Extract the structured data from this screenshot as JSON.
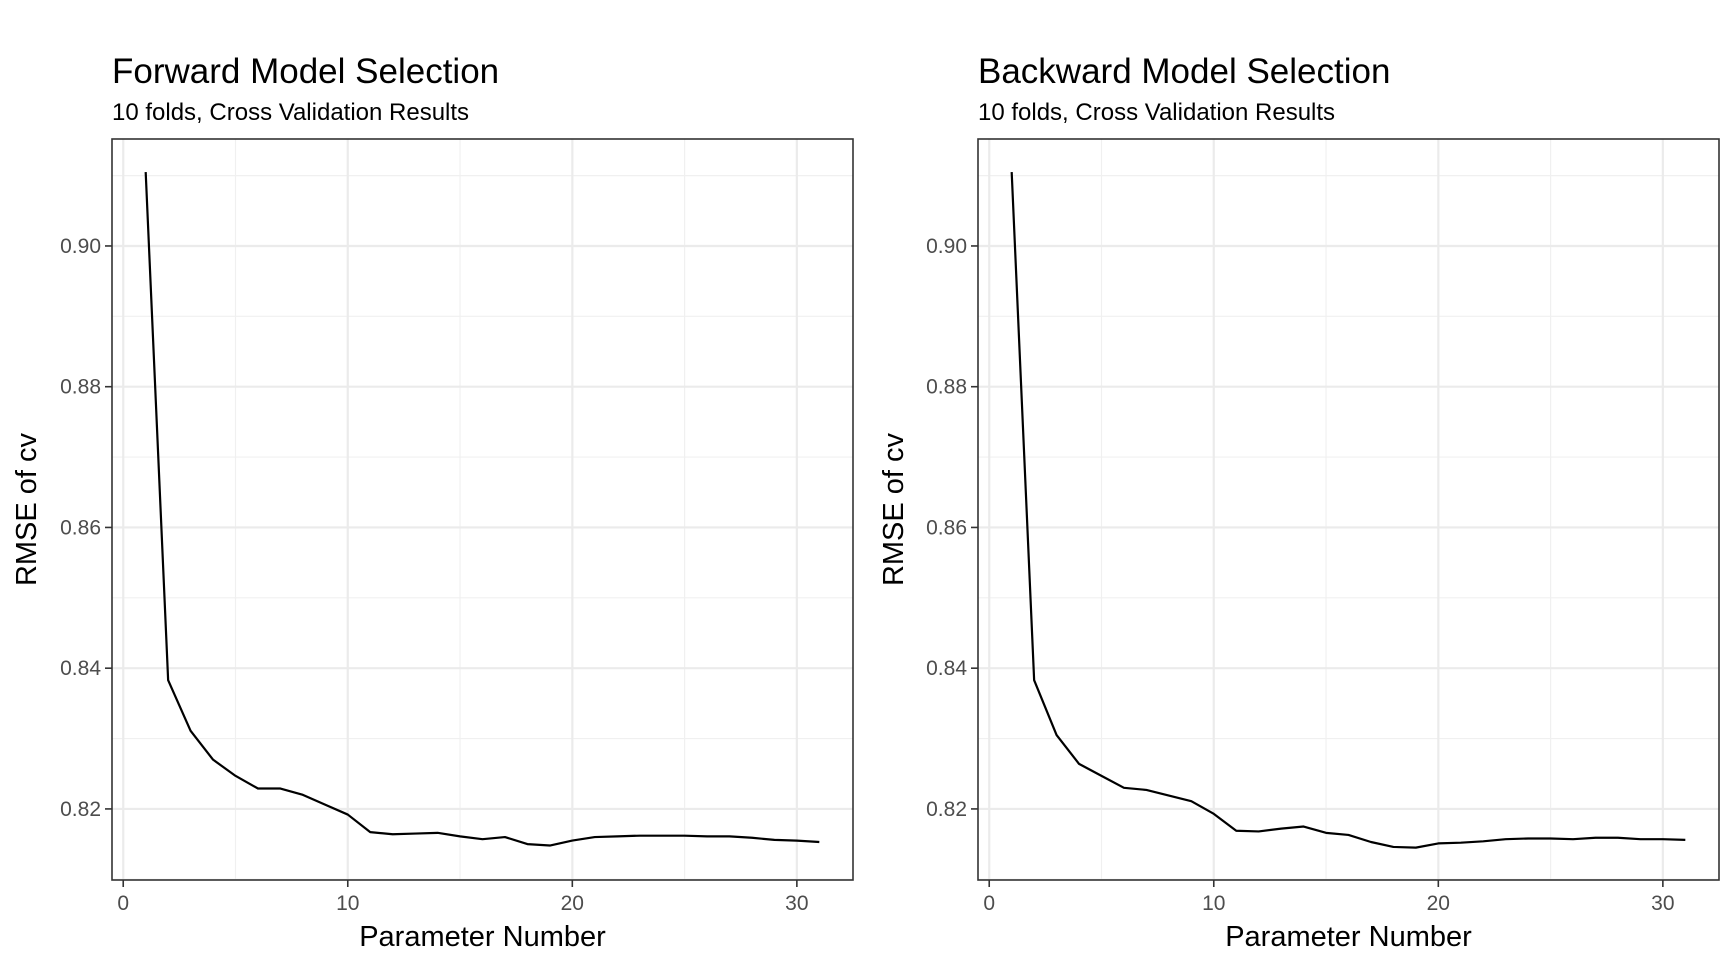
{
  "chart_data": [
    {
      "type": "line",
      "title": "Forward Model Selection",
      "subtitle": "10 folds, Cross Validation Results",
      "xlabel": "Parameter Number",
      "ylabel": "RMSE of cv",
      "xlim": [
        -0.5,
        32.5
      ],
      "ylim": [
        0.8099,
        0.9152
      ],
      "x_ticks": [
        0,
        10,
        20,
        30
      ],
      "x_tick_labels": [
        "0",
        "10",
        "20",
        "30"
      ],
      "y_ticks": [
        0.82,
        0.84,
        0.86,
        0.88,
        0.9
      ],
      "y_tick_labels": [
        "0.82",
        "0.84",
        "0.86",
        "0.88",
        "0.90"
      ],
      "grid": true,
      "series": [
        {
          "color": "#000000",
          "x": [
            1,
            2,
            3,
            4,
            5,
            6,
            7,
            8,
            9,
            10,
            11,
            12,
            13,
            14,
            15,
            16,
            17,
            18,
            19,
            20,
            21,
            22,
            23,
            24,
            25,
            26,
            27,
            28,
            29,
            30,
            31
          ],
          "y": [
            0.9105,
            0.8383,
            0.8311,
            0.827,
            0.8247,
            0.8229,
            0.8229,
            0.822,
            0.8206,
            0.8192,
            0.8167,
            0.8164,
            0.8165,
            0.8166,
            0.8161,
            0.8157,
            0.816,
            0.815,
            0.8148,
            0.8155,
            0.816,
            0.8161,
            0.8162,
            0.8162,
            0.8162,
            0.8161,
            0.8161,
            0.8159,
            0.8156,
            0.8155,
            0.8153
          ]
        }
      ]
    },
    {
      "type": "line",
      "title": "Backward Model Selection",
      "subtitle": "10 folds, Cross Validation Results",
      "xlabel": "Parameter Number",
      "ylabel": "RMSE of cv",
      "xlim": [
        -0.5,
        32.5
      ],
      "ylim": [
        0.8099,
        0.9152
      ],
      "x_ticks": [
        0,
        10,
        20,
        30
      ],
      "x_tick_labels": [
        "0",
        "10",
        "20",
        "30"
      ],
      "y_ticks": [
        0.82,
        0.84,
        0.86,
        0.88,
        0.9
      ],
      "y_tick_labels": [
        "0.82",
        "0.84",
        "0.86",
        "0.88",
        "0.90"
      ],
      "grid": true,
      "series": [
        {
          "color": "#000000",
          "x": [
            1,
            2,
            3,
            4,
            5,
            6,
            7,
            8,
            9,
            10,
            11,
            12,
            13,
            14,
            15,
            16,
            17,
            18,
            19,
            20,
            21,
            22,
            23,
            24,
            25,
            26,
            27,
            28,
            29,
            30,
            31
          ],
          "y": [
            0.9105,
            0.8383,
            0.8305,
            0.8264,
            0.8247,
            0.823,
            0.8227,
            0.8219,
            0.8211,
            0.8193,
            0.8169,
            0.8168,
            0.8172,
            0.8175,
            0.8166,
            0.8163,
            0.8153,
            0.8146,
            0.8145,
            0.8151,
            0.8152,
            0.8154,
            0.8157,
            0.8158,
            0.8158,
            0.8157,
            0.8159,
            0.8159,
            0.8157,
            0.8157,
            0.8156
          ]
        }
      ]
    }
  ]
}
